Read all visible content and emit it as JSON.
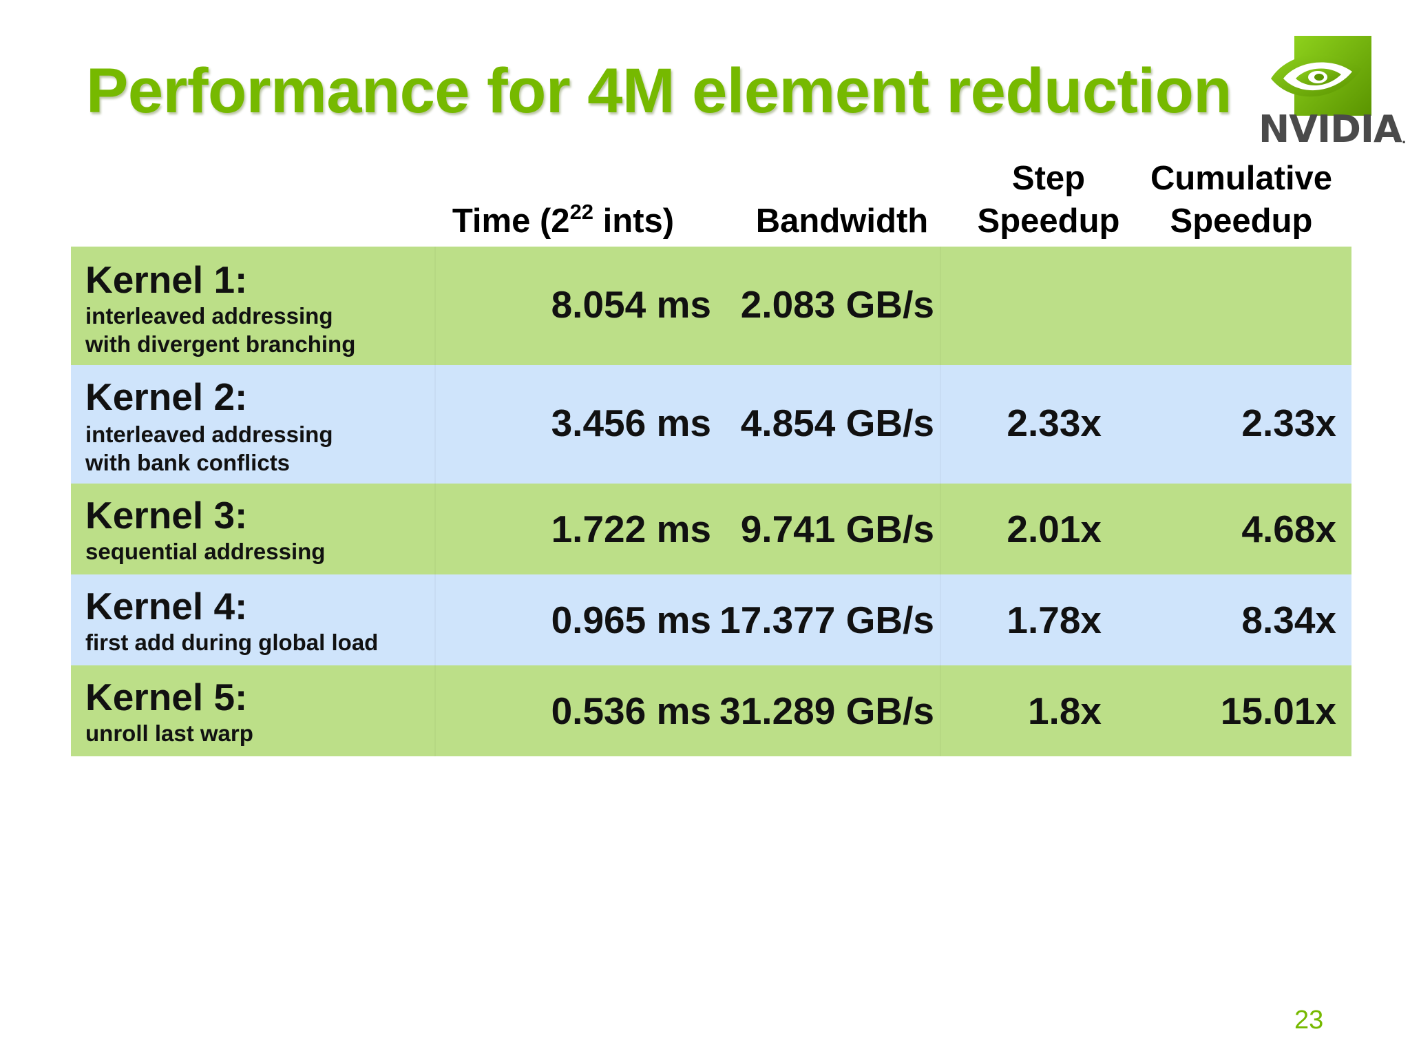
{
  "slide": {
    "title": "Performance for 4M element reduction",
    "page_number": "23",
    "accent_color": "#76b900"
  },
  "logo": {
    "wordmark": "NVIDIA",
    "registered": ".",
    "icon": "nvidia-eye-icon"
  },
  "table": {
    "headers": {
      "time_prefix": "Time (2",
      "time_exponent": "22",
      "time_suffix": " ints)",
      "bandwidth": "Bandwidth",
      "step_line1": "Step",
      "step_line2": "Speedup",
      "cumulative_line1": "Cumulative",
      "cumulative_line2": "Speedup"
    },
    "rows": [
      {
        "name": "Kernel 1:",
        "desc_line1": "interleaved addressing",
        "desc_line2": "with divergent branching",
        "time": "8.054 ms",
        "bandwidth": "2.083 GB/s",
        "step": "",
        "cumulative": ""
      },
      {
        "name": "Kernel 2:",
        "desc_line1": "interleaved addressing",
        "desc_line2": "with bank conflicts",
        "time": "3.456 ms",
        "bandwidth": "4.854 GB/s",
        "step": "2.33x",
        "cumulative": "2.33x"
      },
      {
        "name": "Kernel 3:",
        "desc_line1": "sequential addressing",
        "time": "1.722 ms",
        "bandwidth": "9.741 GB/s",
        "step": "2.01x",
        "cumulative": "4.68x"
      },
      {
        "name": "Kernel 4:",
        "desc_line1": "first add during global load",
        "time": "0.965 ms",
        "bandwidth": "17.377 GB/s",
        "step": "1.78x",
        "cumulative": "8.34x"
      },
      {
        "name": "Kernel 5:",
        "desc_line1": "unroll last warp",
        "time": "0.536 ms",
        "bandwidth": "31.289 GB/s",
        "step": "1.8x",
        "cumulative": "15.01x"
      }
    ],
    "row_colors": [
      "#bcdf88",
      "#cfe4fb"
    ]
  }
}
